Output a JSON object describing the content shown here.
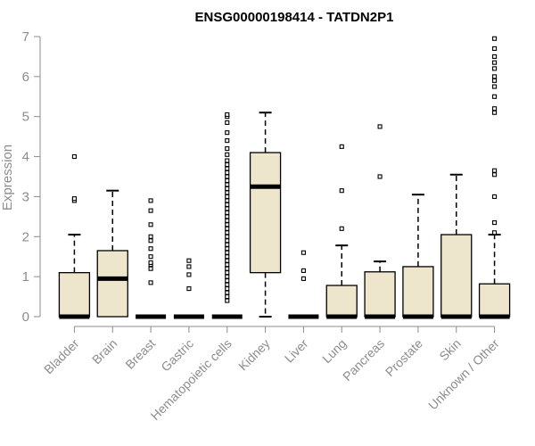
{
  "chart_data": {
    "type": "box",
    "title": "ENSG00000198414 - TATDN2P1",
    "xlabel": "",
    "ylabel": "Expression",
    "ylim": [
      0,
      7
    ],
    "yticks": [
      "0",
      "1",
      "2",
      "3",
      "4",
      "5",
      "6",
      "7"
    ],
    "grid": false,
    "colors": {
      "box_fill": "#ede5cc",
      "stroke": "#000000",
      "axis_text": "#8c8c8c"
    },
    "categories": [
      "Bladder",
      "Brain",
      "Breast",
      "Gastric",
      "Hematopoietic cells",
      "Kidney",
      "Liver",
      "Lung",
      "Pancreas",
      "Prostate",
      "Skin",
      "Unknown / Other"
    ],
    "boxes": [
      {
        "category": "Bladder",
        "whisker_low": 0,
        "q1": 0,
        "median": 0,
        "q3": 1.1,
        "whisker_high": 2.05,
        "outliers": [
          2.9,
          2.95,
          4.0
        ]
      },
      {
        "category": "Brain",
        "whisker_low": 0,
        "q1": 0,
        "median": 0.95,
        "q3": 1.65,
        "whisker_high": 3.15,
        "outliers": []
      },
      {
        "category": "Breast",
        "whisker_low": 0,
        "q1": 0,
        "median": 0,
        "q3": 0,
        "whisker_high": 0,
        "outliers": [
          0.85,
          1.2,
          1.3,
          1.35,
          1.5,
          1.7,
          1.9,
          2.0,
          2.3,
          2.65,
          2.9
        ]
      },
      {
        "category": "Gastric",
        "whisker_low": 0,
        "q1": 0,
        "median": 0,
        "q3": 0,
        "whisker_high": 0,
        "outliers": [
          0.7,
          1.05,
          1.25,
          1.4
        ]
      },
      {
        "category": "Hematopoietic cells",
        "whisker_low": 0,
        "q1": 0,
        "median": 0,
        "q3": 0,
        "whisker_high": 0,
        "outliers": [
          0.4,
          0.5,
          0.6,
          0.7,
          0.8,
          0.9,
          1.0,
          1.1,
          1.2,
          1.3,
          1.4,
          1.5,
          1.6,
          1.7,
          1.8,
          1.9,
          2.0,
          2.1,
          2.2,
          2.3,
          2.4,
          2.5,
          2.6,
          2.7,
          2.8,
          2.9,
          3.0,
          3.1,
          3.2,
          3.3,
          3.4,
          3.5,
          3.6,
          3.7,
          3.8,
          3.9,
          4.05,
          4.2,
          4.4,
          4.6,
          4.85,
          5.0,
          5.05
        ]
      },
      {
        "category": "Kidney",
        "whisker_low": 0,
        "q1": 1.1,
        "median": 3.25,
        "q3": 4.1,
        "whisker_high": 5.1,
        "outliers": []
      },
      {
        "category": "Liver",
        "whisker_low": 0,
        "q1": 0,
        "median": 0,
        "q3": 0,
        "whisker_high": 0,
        "outliers": [
          0.95,
          1.15,
          1.6
        ]
      },
      {
        "category": "Lung",
        "whisker_low": 0,
        "q1": 0,
        "median": 0,
        "q3": 0.78,
        "whisker_high": 1.78,
        "outliers": [
          2.2,
          3.15,
          4.25
        ]
      },
      {
        "category": "Pancreas",
        "whisker_low": 0,
        "q1": 0,
        "median": 0,
        "q3": 1.12,
        "whisker_high": 1.38,
        "outliers": [
          3.5,
          4.75
        ]
      },
      {
        "category": "Prostate",
        "whisker_low": 0,
        "q1": 0,
        "median": 0,
        "q3": 1.25,
        "whisker_high": 3.05,
        "outliers": []
      },
      {
        "category": "Skin",
        "whisker_low": 0,
        "q1": 0,
        "median": 0,
        "q3": 2.05,
        "whisker_high": 3.55,
        "outliers": []
      },
      {
        "category": "Unknown / Other",
        "whisker_low": 0,
        "q1": 0,
        "median": 0,
        "q3": 0.82,
        "whisker_high": 2.05,
        "outliers": [
          2.1,
          2.35,
          3.0,
          3.55,
          3.65,
          5.1,
          5.2,
          5.5,
          5.75,
          5.9,
          6.0,
          6.2,
          6.35,
          6.5,
          6.7,
          6.95
        ]
      }
    ]
  }
}
